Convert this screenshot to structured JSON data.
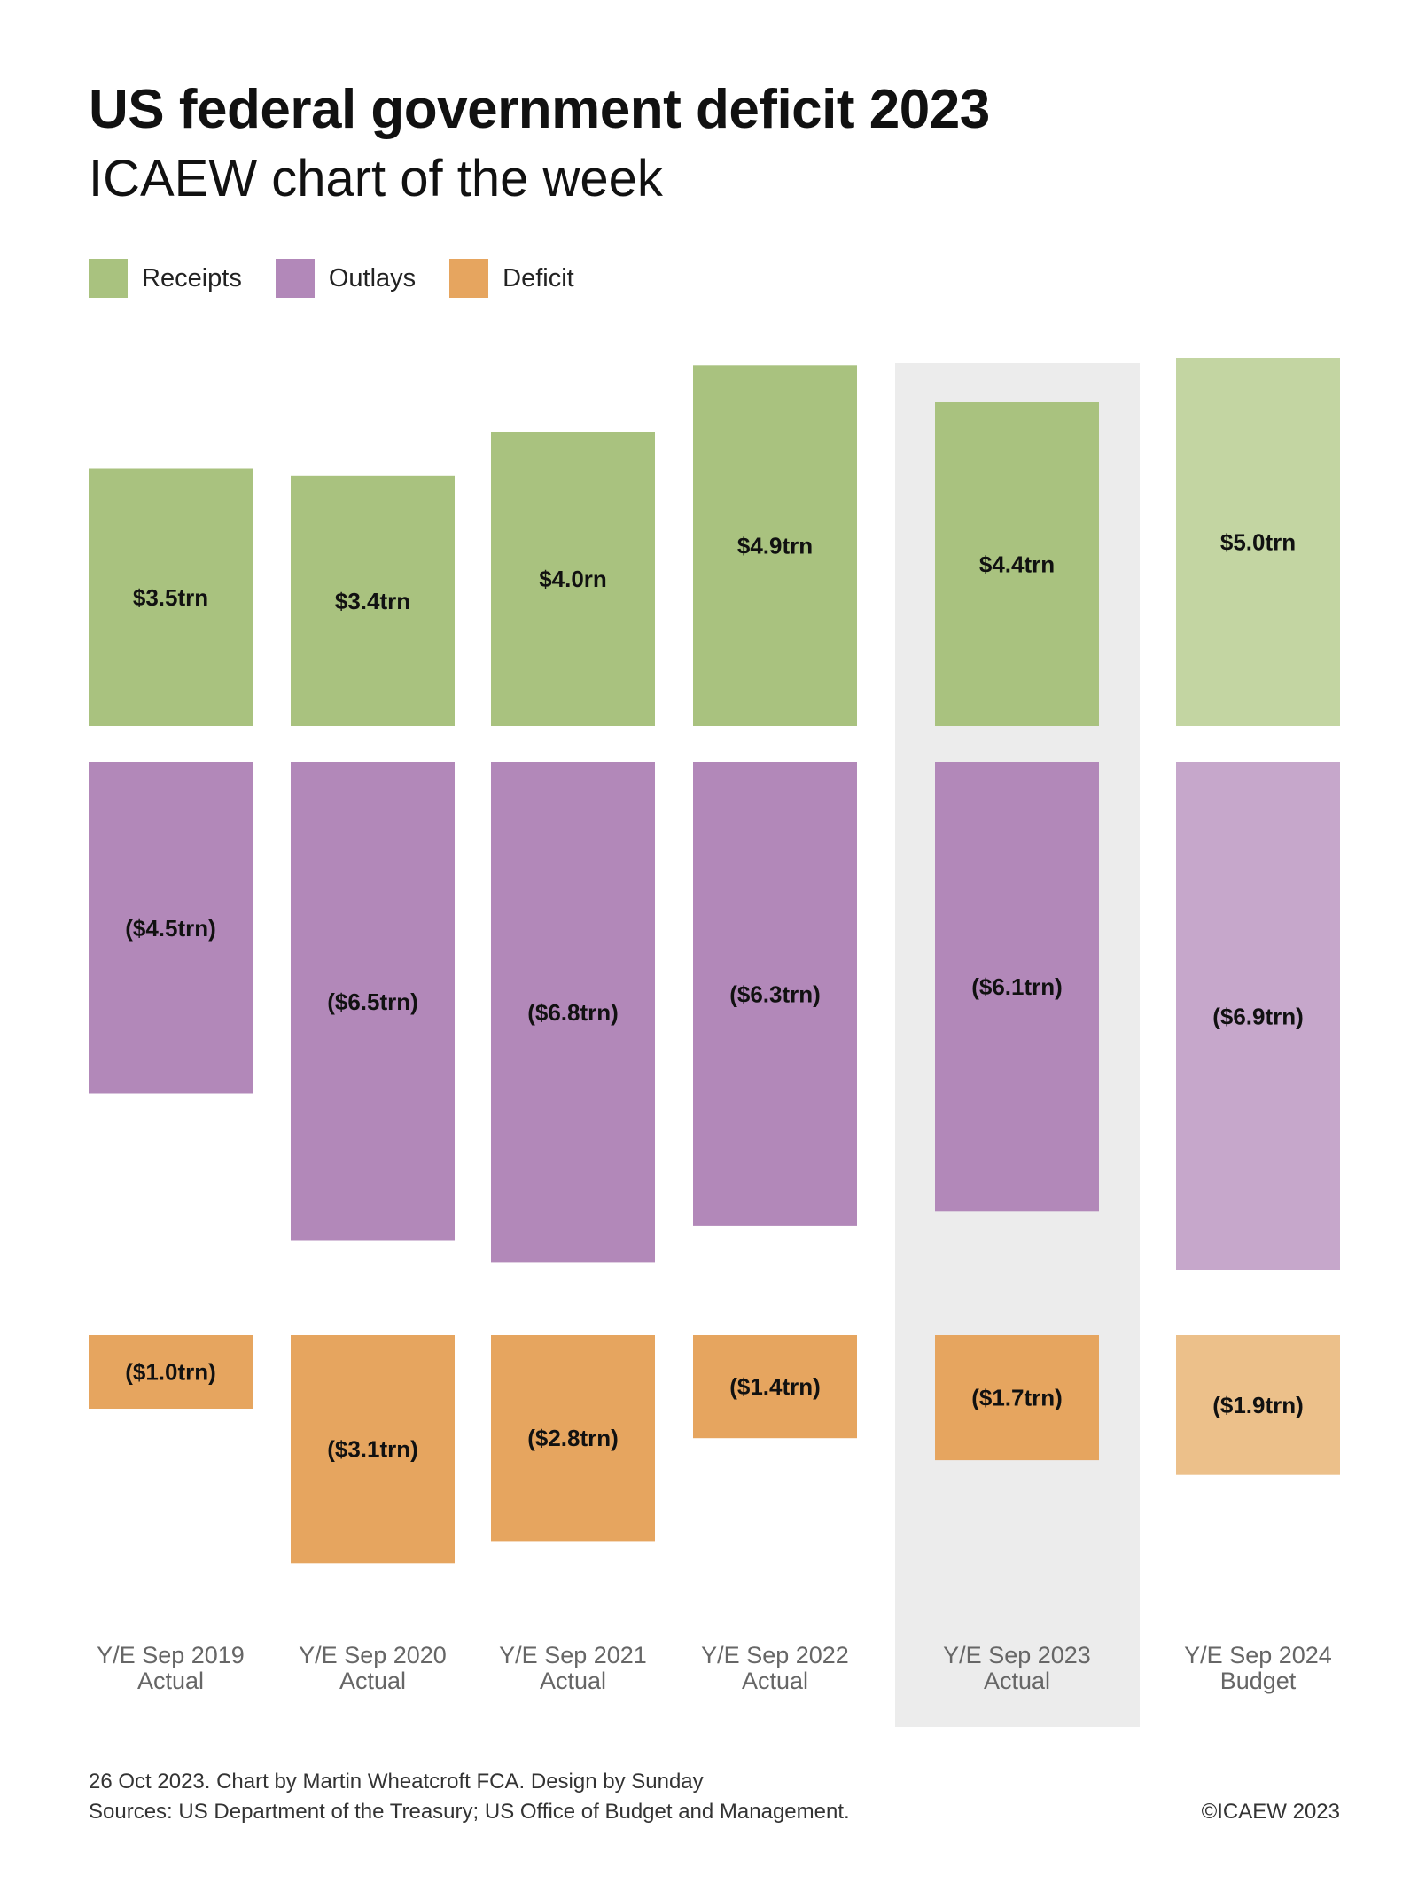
{
  "header": {
    "title": "US federal government deficit 2023",
    "subtitle": "ICAEW chart of the week"
  },
  "chart_data": {
    "type": "bar",
    "title": "US federal government deficit 2023",
    "subtitle": "ICAEW chart of the week",
    "unit": "$trn",
    "legend_position": "top-left",
    "grid": false,
    "categories": [
      [
        "Y/E Sep 2019",
        "Actual"
      ],
      [
        "Y/E Sep 2020",
        "Actual"
      ],
      [
        "Y/E Sep 2021",
        "Actual"
      ],
      [
        "Y/E Sep 2022",
        "Actual"
      ],
      [
        "Y/E Sep 2023",
        "Actual"
      ],
      [
        "Y/E Sep 2024",
        "Budget"
      ]
    ],
    "highlighted_category_index": 4,
    "series": [
      {
        "name": "Receipts",
        "color": "#a9c27f",
        "light_color": "#c3d5a2",
        "values": [
          3.5,
          3.4,
          4.0,
          4.9,
          4.4,
          5.0
        ],
        "labels": [
          "$3.5trn",
          "$3.4trn",
          "$4.0rn",
          "$4.9trn",
          "$4.4trn",
          "$5.0trn"
        ]
      },
      {
        "name": "Outlays",
        "color": "#b288b9",
        "light_color": "#c6a7cb",
        "values": [
          -4.5,
          -6.5,
          -6.8,
          -6.3,
          -6.1,
          -6.9
        ],
        "labels": [
          "($4.5trn)",
          "($6.5trn)",
          "($6.8trn)",
          "($6.3trn)",
          "($6.1trn)",
          "($6.9trn)"
        ]
      },
      {
        "name": "Deficit",
        "color": "#e6a55f",
        "light_color": "#ecc08a",
        "values": [
          -1.0,
          -3.1,
          -2.8,
          -1.4,
          -1.7,
          -1.9
        ],
        "labels": [
          "($1.0trn)",
          "($3.1trn)",
          "($2.8trn)",
          "($1.4trn)",
          "($1.7trn)",
          "($1.9trn)"
        ]
      }
    ]
  },
  "footer": {
    "credit": "26 Oct 2023.   Chart by Martin Wheatcroft FCA. Design by Sunday",
    "sources": "Sources: US Department of the Treasury; US Office of Budget and Management.",
    "copyright": "©ICAEW 2023"
  }
}
